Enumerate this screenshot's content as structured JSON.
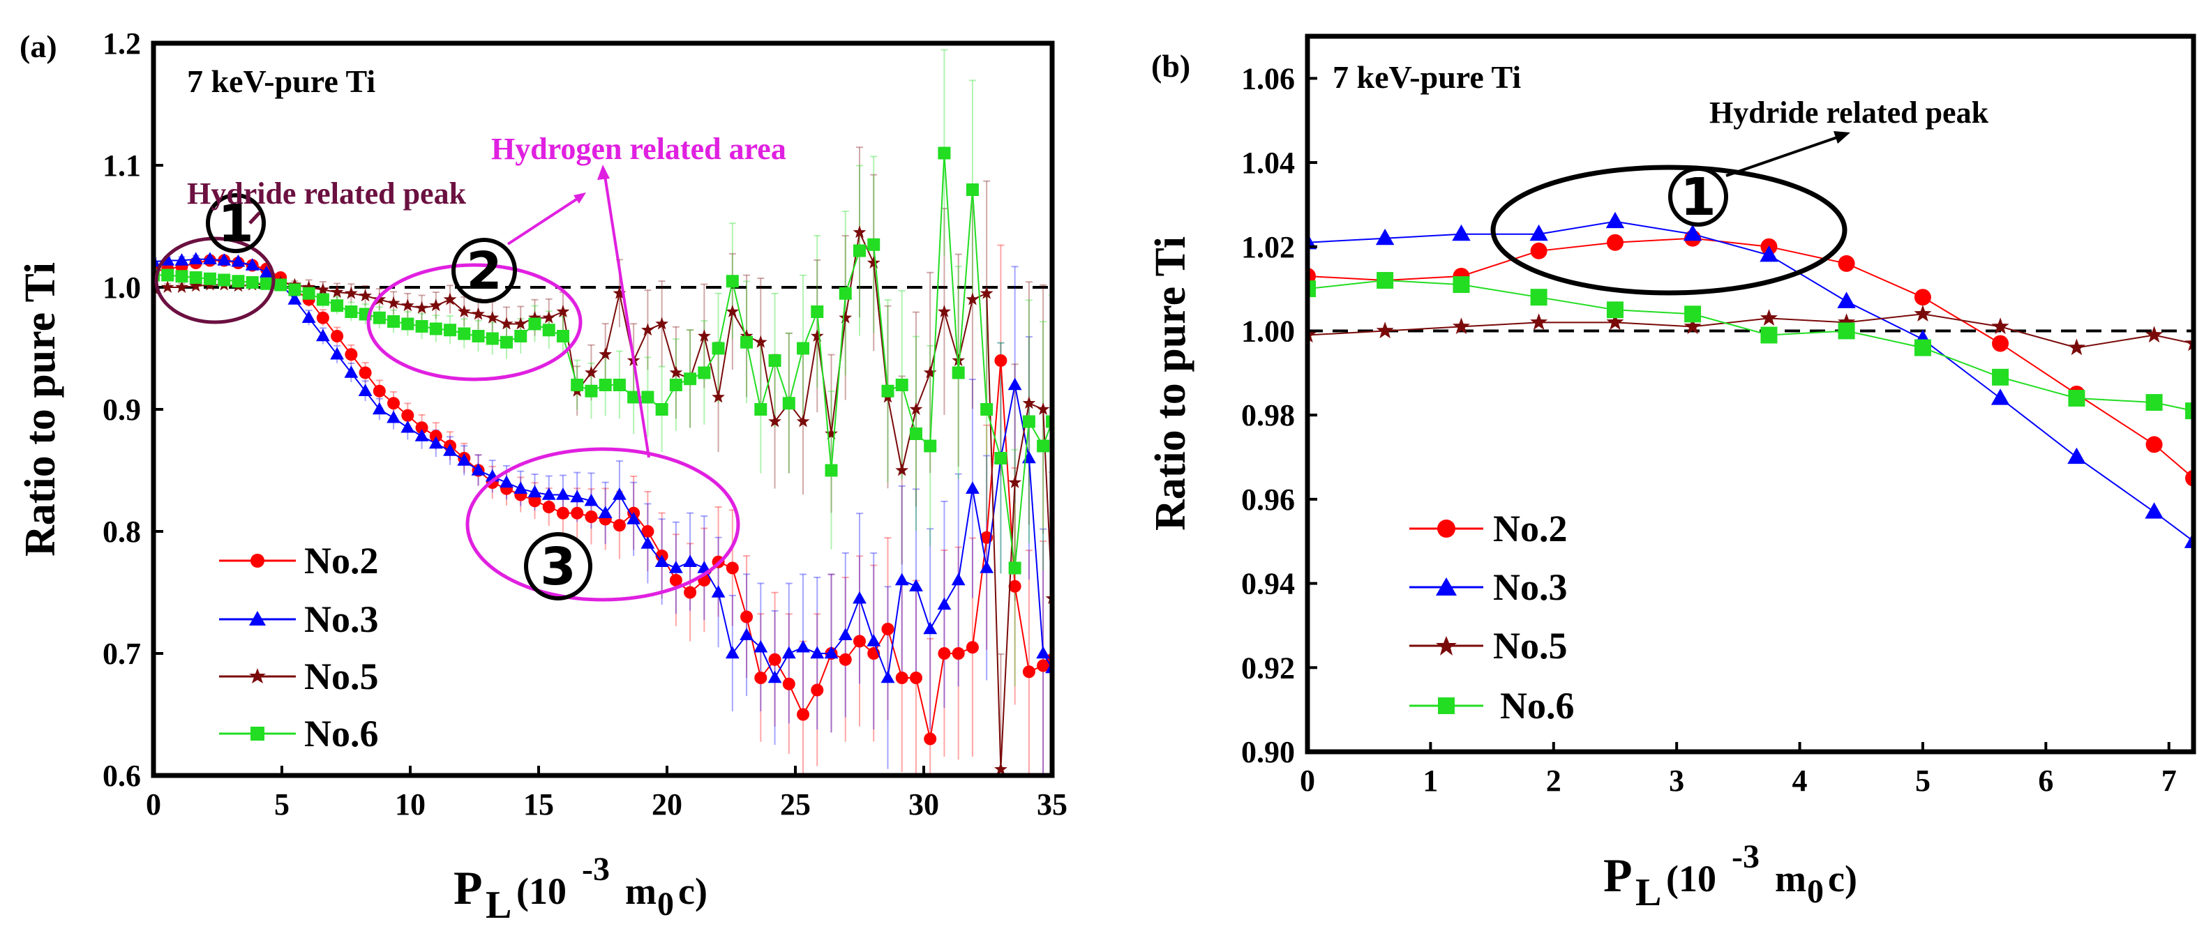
{
  "colors": {
    "no2": "#ff0000",
    "no3": "#0000ff",
    "no5": "#7a0a0a",
    "no6": "#22dd22",
    "magenta": "#e020e0",
    "purple": "#6b1040",
    "black": "#000000"
  },
  "panel_a": {
    "label": "(a)",
    "sample": "7 keV-pure Ti",
    "ylabel": "Ratio to pure Ti",
    "xlabel_main": "P",
    "xlabel_sub": "L",
    "xlabel_unit_open": "(10",
    "xlabel_exp": "-3",
    "xlabel_m": "m",
    "xlabel_m_sub": "0",
    "xlabel_unit_close": "c)",
    "annotations": {
      "hydride": "Hydride related peak",
      "hydrogen": "Hydrogen related area",
      "c1": "1",
      "c2": "2",
      "c3": "3"
    },
    "legend": [
      "No.2",
      "No.3",
      "No.5",
      "No.6"
    ]
  },
  "panel_b": {
    "label": "(b)",
    "sample": "7 keV-pure Ti",
    "ylabel": "Ratio to pure Ti",
    "xlabel_main": "P",
    "xlabel_sub": "L",
    "xlabel_unit_open": "(10",
    "xlabel_exp": "-3",
    "xlabel_m": "m",
    "xlabel_m_sub": "0",
    "xlabel_unit_close": "c)",
    "annotations": {
      "hydride": "Hydride related peak",
      "c1": "1"
    },
    "legend": [
      "No.2",
      "No.3",
      "No.5",
      "No.6"
    ]
  },
  "chart_data": [
    {
      "type": "line",
      "panel": "a",
      "title": "7 keV-pure Ti",
      "xlabel": "PL(10-3m0c)",
      "ylabel": "Ratio to pure Ti",
      "xlim": [
        0,
        35
      ],
      "ylim": [
        0.6,
        1.2
      ],
      "xticks": [
        0,
        5,
        10,
        15,
        20,
        25,
        30,
        35
      ],
      "yticks": [
        "0.6",
        "0.7",
        "0.8",
        "0.9",
        "1.0",
        "1.1",
        "1.2"
      ],
      "reference_line": 1.0,
      "x": [
        0,
        0.55,
        1.1,
        1.65,
        2.2,
        2.75,
        3.3,
        3.85,
        4.4,
        4.95,
        5.5,
        6.05,
        6.6,
        7.15,
        7.7,
        8.25,
        8.8,
        9.35,
        9.9,
        10.45,
        11.0,
        11.55,
        12.1,
        12.65,
        13.2,
        13.75,
        14.3,
        14.85,
        15.4,
        15.95,
        16.5,
        17.05,
        17.6,
        18.15,
        18.7,
        19.25,
        19.8,
        20.35,
        20.9,
        21.45,
        22.0,
        22.55,
        23.1,
        23.65,
        24.2,
        24.75,
        25.3,
        25.85,
        26.4,
        26.95,
        27.5,
        28.05,
        28.6,
        29.15,
        29.7,
        30.25,
        30.8,
        31.35,
        31.9,
        32.45,
        33.0,
        33.55,
        34.1,
        34.65,
        35.0
      ],
      "series": [
        {
          "name": "No.2",
          "marker": "circle",
          "values": [
            1.013,
            1.015,
            1.017,
            1.02,
            1.022,
            1.022,
            1.02,
            1.018,
            1.015,
            1.008,
            0.998,
            0.99,
            0.975,
            0.96,
            0.945,
            0.93,
            0.915,
            0.905,
            0.895,
            0.885,
            0.878,
            0.87,
            0.86,
            0.85,
            0.84,
            0.835,
            0.83,
            0.825,
            0.82,
            0.815,
            0.815,
            0.812,
            0.81,
            0.805,
            0.815,
            0.8,
            0.78,
            0.76,
            0.75,
            0.76,
            0.775,
            0.77,
            0.73,
            0.68,
            0.695,
            0.675,
            0.65,
            0.67,
            0.7,
            0.695,
            0.71,
            0.7,
            0.72,
            0.68,
            0.68,
            0.63,
            0.7,
            0.7,
            0.705,
            0.795,
            0.94,
            0.755,
            0.685,
            0.69,
            0.695
          ]
        },
        {
          "name": "No.3",
          "marker": "triangle",
          "values": [
            1.021,
            1.022,
            1.022,
            1.023,
            1.023,
            1.022,
            1.021,
            1.018,
            1.012,
            1.003,
            0.99,
            0.975,
            0.96,
            0.945,
            0.93,
            0.915,
            0.9,
            0.893,
            0.885,
            0.878,
            0.872,
            0.866,
            0.858,
            0.85,
            0.845,
            0.84,
            0.835,
            0.832,
            0.83,
            0.83,
            0.828,
            0.825,
            0.815,
            0.83,
            0.81,
            0.79,
            0.775,
            0.77,
            0.775,
            0.77,
            0.75,
            0.7,
            0.715,
            0.705,
            0.68,
            0.7,
            0.705,
            0.7,
            0.7,
            0.715,
            0.745,
            0.71,
            0.68,
            0.76,
            0.755,
            0.72,
            0.74,
            0.76,
            0.835,
            0.77,
            0.86,
            0.92,
            0.86,
            0.7,
            0.688
          ]
        },
        {
          "name": "No.5",
          "marker": "star",
          "values": [
            0.999,
            1.0,
            1.0,
            1.001,
            1.002,
            1.002,
            1.001,
            1.002,
            1.003,
            1.004,
            1.002,
            1.0,
            0.998,
            0.996,
            0.995,
            0.993,
            0.99,
            0.987,
            0.985,
            0.983,
            0.985,
            0.99,
            0.98,
            0.978,
            0.975,
            0.97,
            0.97,
            0.975,
            0.975,
            0.98,
            0.915,
            0.93,
            0.945,
            0.995,
            0.94,
            0.965,
            0.97,
            0.93,
            0.925,
            0.96,
            0.91,
            0.98,
            0.96,
            0.955,
            0.89,
            0.905,
            0.89,
            0.96,
            0.88,
            0.975,
            1.045,
            1.02,
            0.91,
            0.85,
            0.9,
            0.93,
            0.98,
            0.94,
            0.99,
            0.995,
            0.605,
            0.84,
            0.905,
            0.9,
            0.745
          ]
        },
        {
          "name": "No.6",
          "marker": "square",
          "values": [
            1.01,
            1.01,
            1.009,
            1.008,
            1.007,
            1.006,
            1.005,
            1.004,
            1.003,
            1.002,
            0.998,
            0.995,
            0.99,
            0.985,
            0.98,
            0.978,
            0.975,
            0.972,
            0.97,
            0.968,
            0.966,
            0.965,
            0.962,
            0.96,
            0.958,
            0.955,
            0.96,
            0.97,
            0.965,
            0.96,
            0.92,
            0.915,
            0.92,
            0.92,
            0.91,
            0.91,
            0.9,
            0.92,
            0.925,
            0.93,
            0.95,
            1.005,
            0.955,
            0.9,
            0.94,
            0.905,
            0.95,
            0.98,
            0.85,
            0.995,
            1.03,
            1.035,
            0.915,
            0.92,
            0.88,
            0.87,
            1.11,
            0.93,
            1.08,
            0.9,
            0.86,
            0.77,
            0.89,
            0.87,
            0.89
          ]
        }
      ]
    },
    {
      "type": "line",
      "panel": "b",
      "title": "7 keV-pure Ti",
      "xlabel": "PL(10-3m0c)",
      "ylabel": "Ratio to pure Ti",
      "xlim": [
        0,
        7.2
      ],
      "ylim": [
        0.9,
        1.07
      ],
      "xticks": [
        0,
        1,
        2,
        3,
        4,
        5,
        6,
        7
      ],
      "yticks": [
        "0.90",
        "0.92",
        "0.94",
        "0.96",
        "0.98",
        "1.00",
        "1.02",
        "1.04",
        "1.06"
      ],
      "reference_line": 1.0,
      "series": [
        {
          "name": "No.2",
          "marker": "circle",
          "x": [
            0,
            0.63,
            1.25,
            1.88,
            2.5,
            3.13,
            3.75,
            4.38,
            5.0,
            5.63,
            6.25,
            6.88,
            7.2
          ],
          "values": [
            1.013,
            1.012,
            1.013,
            1.019,
            1.021,
            1.022,
            1.02,
            1.016,
            1.008,
            0.997,
            0.985,
            0.973,
            0.965
          ]
        },
        {
          "name": "No.3",
          "marker": "triangle",
          "x": [
            0,
            0.63,
            1.25,
            1.88,
            2.5,
            3.13,
            3.75,
            4.38,
            5.0,
            5.63,
            6.25,
            6.88,
            7.2
          ],
          "values": [
            1.021,
            1.022,
            1.023,
            1.023,
            1.026,
            1.023,
            1.018,
            1.007,
            0.998,
            0.984,
            0.97,
            0.957,
            0.95
          ]
        },
        {
          "name": "No.5",
          "marker": "star",
          "x": [
            0,
            0.63,
            1.25,
            1.88,
            2.5,
            3.13,
            3.75,
            4.38,
            5.0,
            5.63,
            6.25,
            6.88,
            7.2
          ],
          "values": [
            0.999,
            1.0,
            1.001,
            1.002,
            1.002,
            1.001,
            1.003,
            1.002,
            1.004,
            1.001,
            0.996,
            0.999,
            0.997
          ]
        },
        {
          "name": "No.6",
          "marker": "square",
          "x": [
            0,
            0.63,
            1.25,
            1.88,
            2.5,
            3.13,
            3.75,
            4.38,
            5.0,
            5.63,
            6.25,
            6.88,
            7.2
          ],
          "values": [
            1.01,
            1.012,
            1.011,
            1.008,
            1.005,
            1.004,
            0.999,
            1.0,
            0.996,
            0.989,
            0.984,
            0.983,
            0.981
          ]
        }
      ]
    }
  ]
}
